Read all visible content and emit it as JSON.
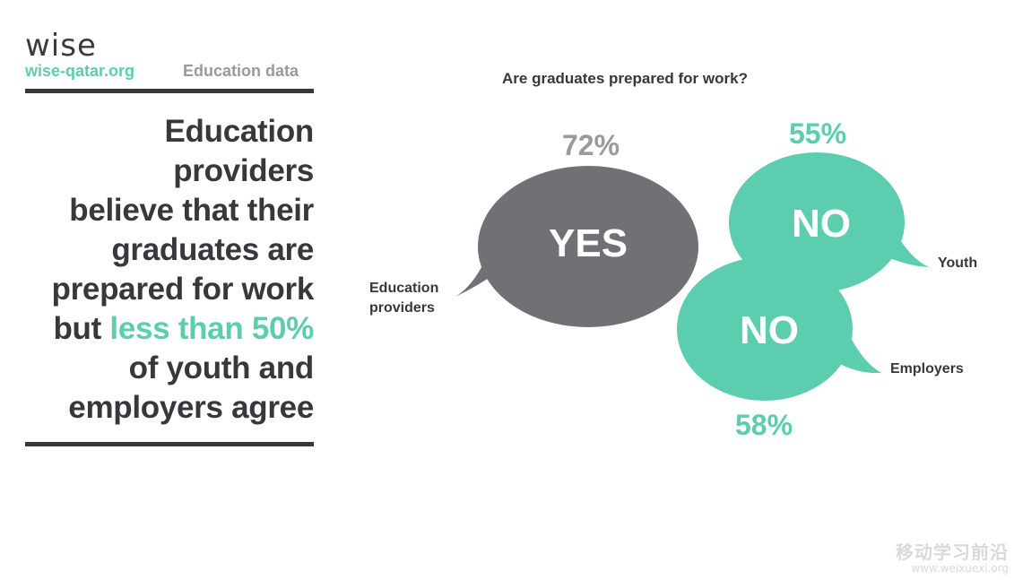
{
  "brand": {
    "logo": "wise",
    "site": "wise-qatar.org",
    "section": "Education data"
  },
  "headline": {
    "line1": "Education providers",
    "line2": "believe that their",
    "line3": "graduates are",
    "line4": "prepared for work",
    "line5_prefix": "but ",
    "line5_highlight": "less than 50%",
    "line6": "of youth and",
    "line7": "employers agree"
  },
  "infographic": {
    "question": "Are graduates prepared for work?",
    "education_providers": {
      "label_line1": "Education",
      "label_line2": "providers",
      "answer": "YES",
      "percent": "72%"
    },
    "youth": {
      "label": "Youth",
      "answer": "NO",
      "percent": "55%"
    },
    "employers": {
      "label": "Employers",
      "answer": "NO",
      "percent": "58%"
    }
  },
  "watermark": {
    "cn": "移动学习前沿",
    "url": "www.weixuexi.org"
  },
  "colors": {
    "gray_bubble": "#717175",
    "green_bubble": "#5ccdaf",
    "dark_text": "#38383c",
    "muted_text": "#9a9a9e"
  }
}
